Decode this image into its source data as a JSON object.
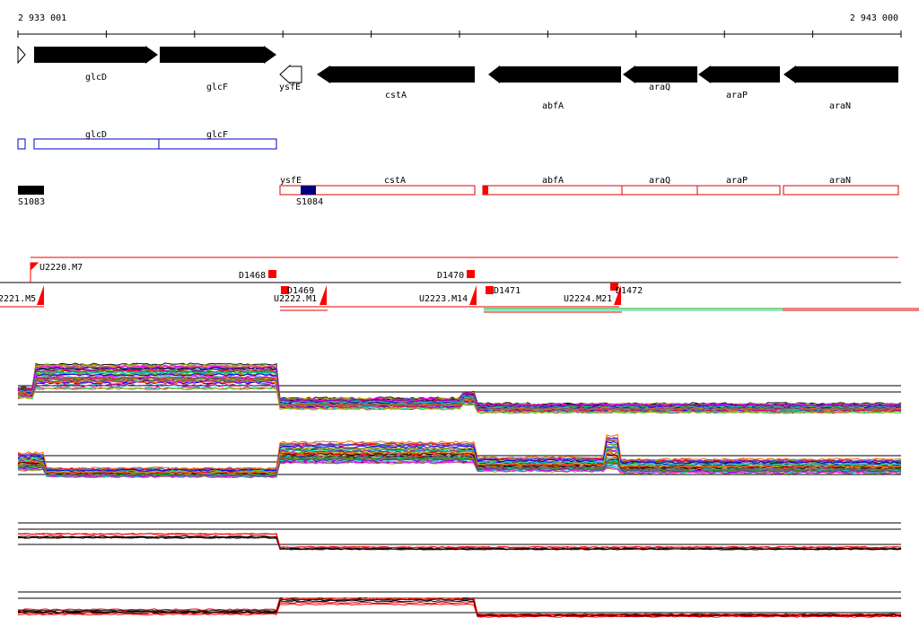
{
  "coordinates": {
    "start": "2 933 001",
    "end": "2 943 000"
  },
  "colors": {
    "gene_black": "#000000",
    "operon_blue": "#0000cc",
    "operon_red": "#e00000",
    "srna_navy": "#000080",
    "tu_red": "#ff0000",
    "background": "#ffffff"
  },
  "gene_track": [
    {
      "label": "glcD",
      "strand": "+"
    },
    {
      "label": "glcF",
      "strand": "+"
    },
    {
      "label": "ysfE",
      "strand": "-"
    },
    {
      "label": "cstA",
      "strand": "-"
    },
    {
      "label": "abfA",
      "strand": "-"
    },
    {
      "label": "araQ",
      "strand": "-"
    },
    {
      "label": "araP",
      "strand": "-"
    },
    {
      "label": "araN",
      "strand": "-"
    }
  ],
  "operon_blue": [
    {
      "label": "glcD"
    },
    {
      "label": "glcF"
    }
  ],
  "operon_red": [
    {
      "label": "ysfE"
    },
    {
      "label": "cstA"
    },
    {
      "label": "abfA"
    },
    {
      "label": "araQ"
    },
    {
      "label": "araP"
    },
    {
      "label": "araN"
    }
  ],
  "srna": [
    {
      "label": "S1083"
    },
    {
      "label": "S1084"
    }
  ],
  "tu_labels": {
    "u2221": "2221.M5",
    "u2220": "U2220.M7",
    "u2222": "U2222.M1",
    "u2223": "U2223.M14",
    "u2224": "U2224.M21"
  },
  "downshifts": [
    "D1468",
    "D1469",
    "D1470",
    "D1471",
    "D1472"
  ]
}
